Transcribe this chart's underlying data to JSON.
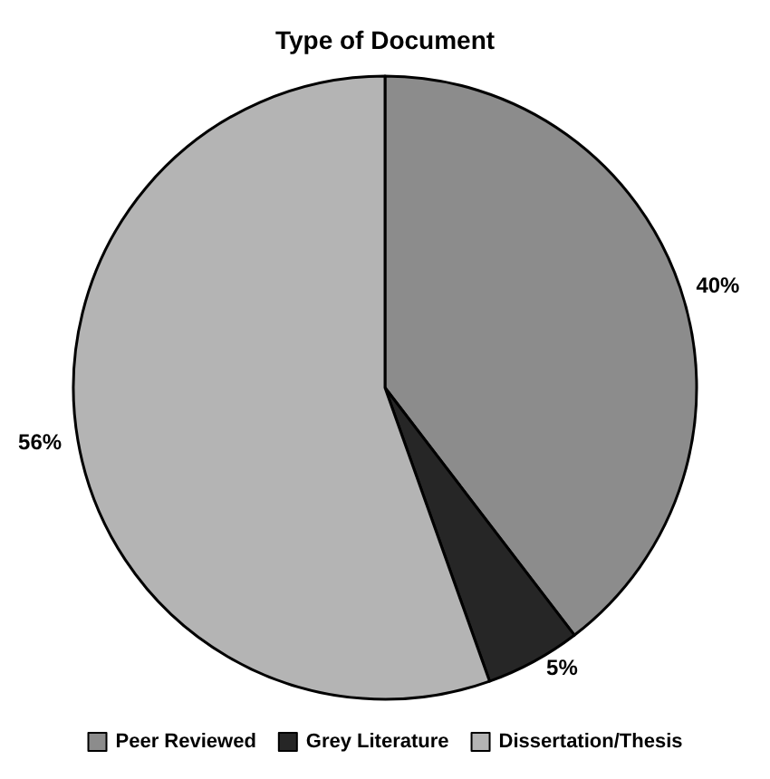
{
  "chart_data": {
    "type": "pie",
    "title": "Type of Document",
    "categories": [
      "Peer Reviewed",
      "Grey Literature",
      "Dissertation/Thesis"
    ],
    "values": [
      40,
      5,
      56
    ],
    "colors": [
      "#8c8c8c",
      "#262626",
      "#b4b4b4"
    ],
    "value_labels": [
      "40%",
      "5%",
      "56%"
    ],
    "legend": "bottom"
  }
}
